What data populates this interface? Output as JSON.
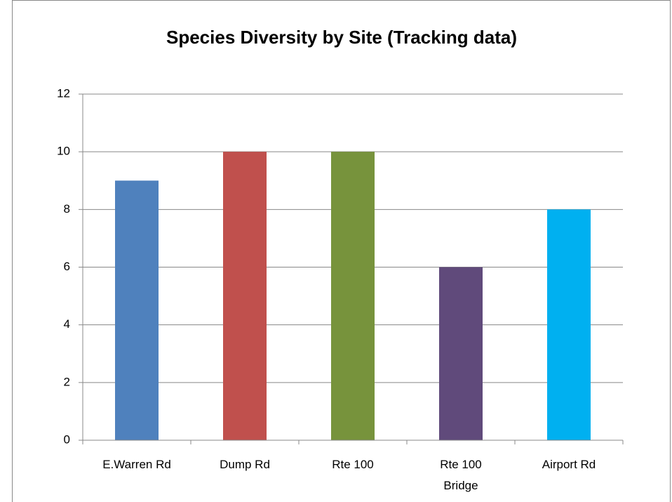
{
  "chart_data": {
    "type": "bar",
    "title": "Species Diversity by Site (Tracking data)",
    "categories": [
      "E.Warren Rd",
      "Dump Rd",
      "Rte 100",
      "Rte 100 Bridge",
      "Airport Rd"
    ],
    "values": [
      9,
      10,
      10,
      6,
      8
    ],
    "colors": [
      "#4f81bd",
      "#c0504d",
      "#77933c",
      "#604a7b",
      "#00b0f0"
    ],
    "ylim": [
      0,
      12
    ],
    "yticks": [
      0,
      2,
      4,
      6,
      8,
      10,
      12
    ],
    "grid": true
  }
}
